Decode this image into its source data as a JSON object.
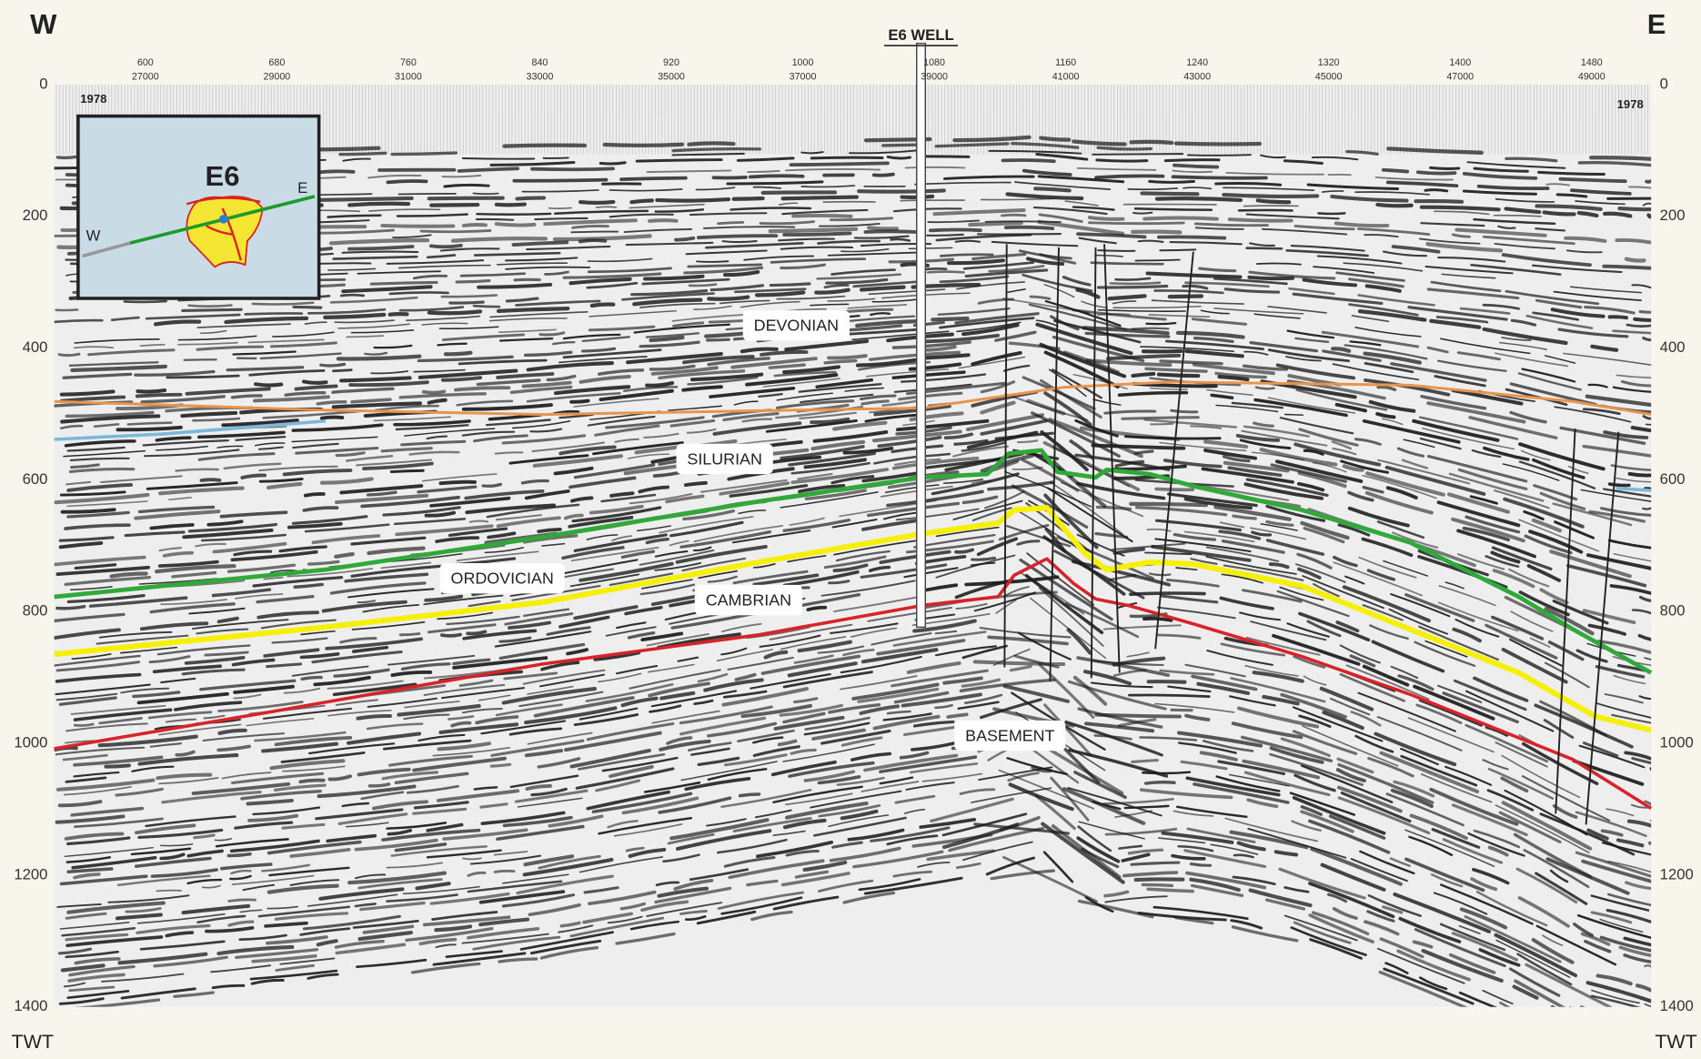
{
  "directions": {
    "west": "W",
    "east": "E"
  },
  "well_label": "E6 WELL",
  "left_axis": {
    "label": "TWT",
    "ticks": [
      0,
      200,
      400,
      600,
      800,
      1000,
      1200,
      1400
    ]
  },
  "right_axis": {
    "label": "TWT",
    "ticks": [
      0,
      200,
      400,
      600,
      800,
      1000,
      1200,
      1400
    ]
  },
  "year_labels": [
    1978,
    1978
  ],
  "shotpoints": [
    {
      "sp": 600,
      "cdp": 27000
    },
    {
      "sp": 680,
      "cdp": 29000
    },
    {
      "sp": 760,
      "cdp": 31000
    },
    {
      "sp": 840,
      "cdp": 33000
    },
    {
      "sp": 920,
      "cdp": 35000
    },
    {
      "sp": 1000,
      "cdp": 37000
    },
    {
      "sp": 1080,
      "cdp": 39000
    },
    {
      "sp": 1160,
      "cdp": 41000
    },
    {
      "sp": 1240,
      "cdp": 43000
    },
    {
      "sp": 1320,
      "cdp": 45000
    },
    {
      "sp": 1400,
      "cdp": 47000
    },
    {
      "sp": 1480,
      "cdp": 49000
    }
  ],
  "inset": {
    "title": "E6",
    "west": "W",
    "east": "E"
  },
  "horizons": [
    "DEVONIAN",
    "SILURIAN",
    "ORDOVICIAN",
    "CAMBRIAN",
    "BASEMENT"
  ]
}
